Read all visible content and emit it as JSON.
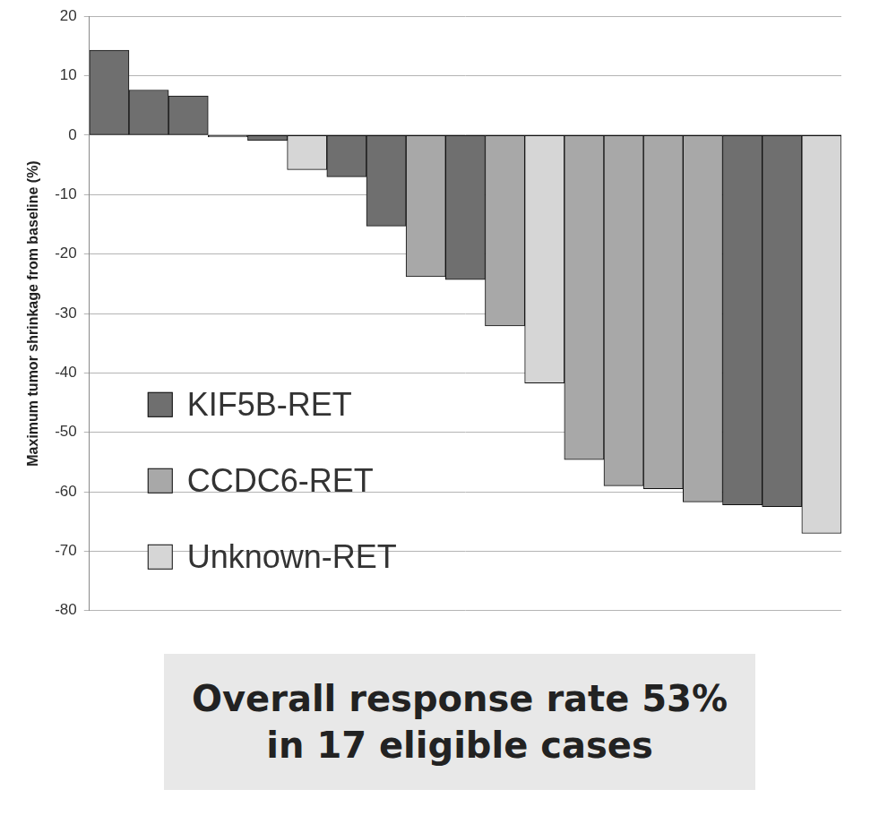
{
  "chart_data": {
    "type": "bar",
    "y_label": "Maximum tumor shrinkage from baseline (%)",
    "categories": [
      null,
      null,
      null,
      null,
      null,
      null,
      null,
      null,
      null,
      null,
      null,
      null,
      null,
      null,
      null,
      null,
      null,
      null,
      null
    ],
    "series": [
      {
        "name": "KIF5B-RET",
        "color": "#6f6f6f",
        "values": [
          14.3,
          7.6,
          6.6,
          -0.3,
          -0.9,
          null,
          -7,
          -15.3,
          null,
          -24.3,
          null,
          null,
          null,
          null,
          null,
          null,
          -62.2,
          -62.5,
          null
        ]
      },
      {
        "name": "CCDC6-RET",
        "color": "#a8a8a8",
        "values": [
          null,
          null,
          null,
          null,
          null,
          null,
          null,
          null,
          -23.8,
          null,
          -32.1,
          null,
          -54.6,
          -59,
          -59.5,
          -61.7,
          null,
          null,
          null
        ]
      },
      {
        "name": "Unknown-RET",
        "color": "#d6d6d6",
        "values": [
          null,
          null,
          null,
          null,
          null,
          -5.8,
          null,
          null,
          null,
          null,
          null,
          -41.7,
          null,
          null,
          null,
          null,
          null,
          null,
          -67
        ]
      }
    ],
    "ylim": [
      -80,
      20
    ],
    "yticks": [
      -80,
      -70,
      -60,
      -50,
      -40,
      -30,
      -20,
      -10,
      0,
      10,
      20
    ],
    "grid": true,
    "legend": "lower left",
    "tick_labels": "y",
    "annotations": [
      "Overall response rate 53%",
      "in 17 eligible cases"
    ]
  }
}
